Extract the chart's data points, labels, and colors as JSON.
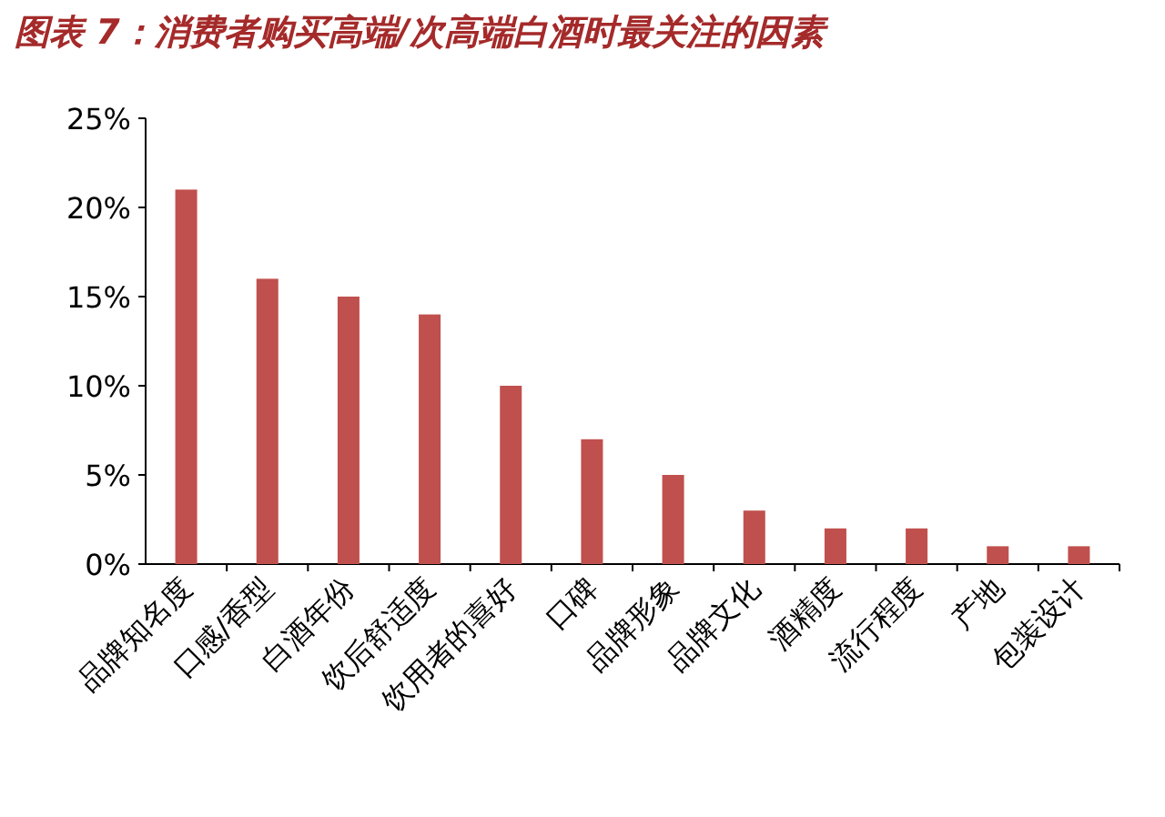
{
  "chart_data": {
    "type": "bar",
    "title": "图表 7：消费者购买高端/次高端白酒时最关注的因素",
    "categories": [
      "品牌知名度",
      "口感/香型",
      "白酒年份",
      "饮后舒适度",
      "饮用者的喜好",
      "口碑",
      "品牌形象",
      "品牌文化",
      "酒精度",
      "流行程度",
      "产地",
      "包装设计"
    ],
    "values": [
      21,
      16,
      15,
      14,
      10,
      7,
      5,
      3,
      2,
      2,
      1,
      1
    ],
    "color": "#c0504d",
    "ylim": [
      0,
      25
    ],
    "yticks": [
      {
        "value": 0,
        "label": "0%"
      },
      {
        "value": 5,
        "label": "5%"
      },
      {
        "value": 10,
        "label": "10%"
      },
      {
        "value": 15,
        "label": "15%"
      },
      {
        "value": 20,
        "label": "20%"
      },
      {
        "value": 25,
        "label": "25%"
      }
    ],
    "grid": false
  }
}
